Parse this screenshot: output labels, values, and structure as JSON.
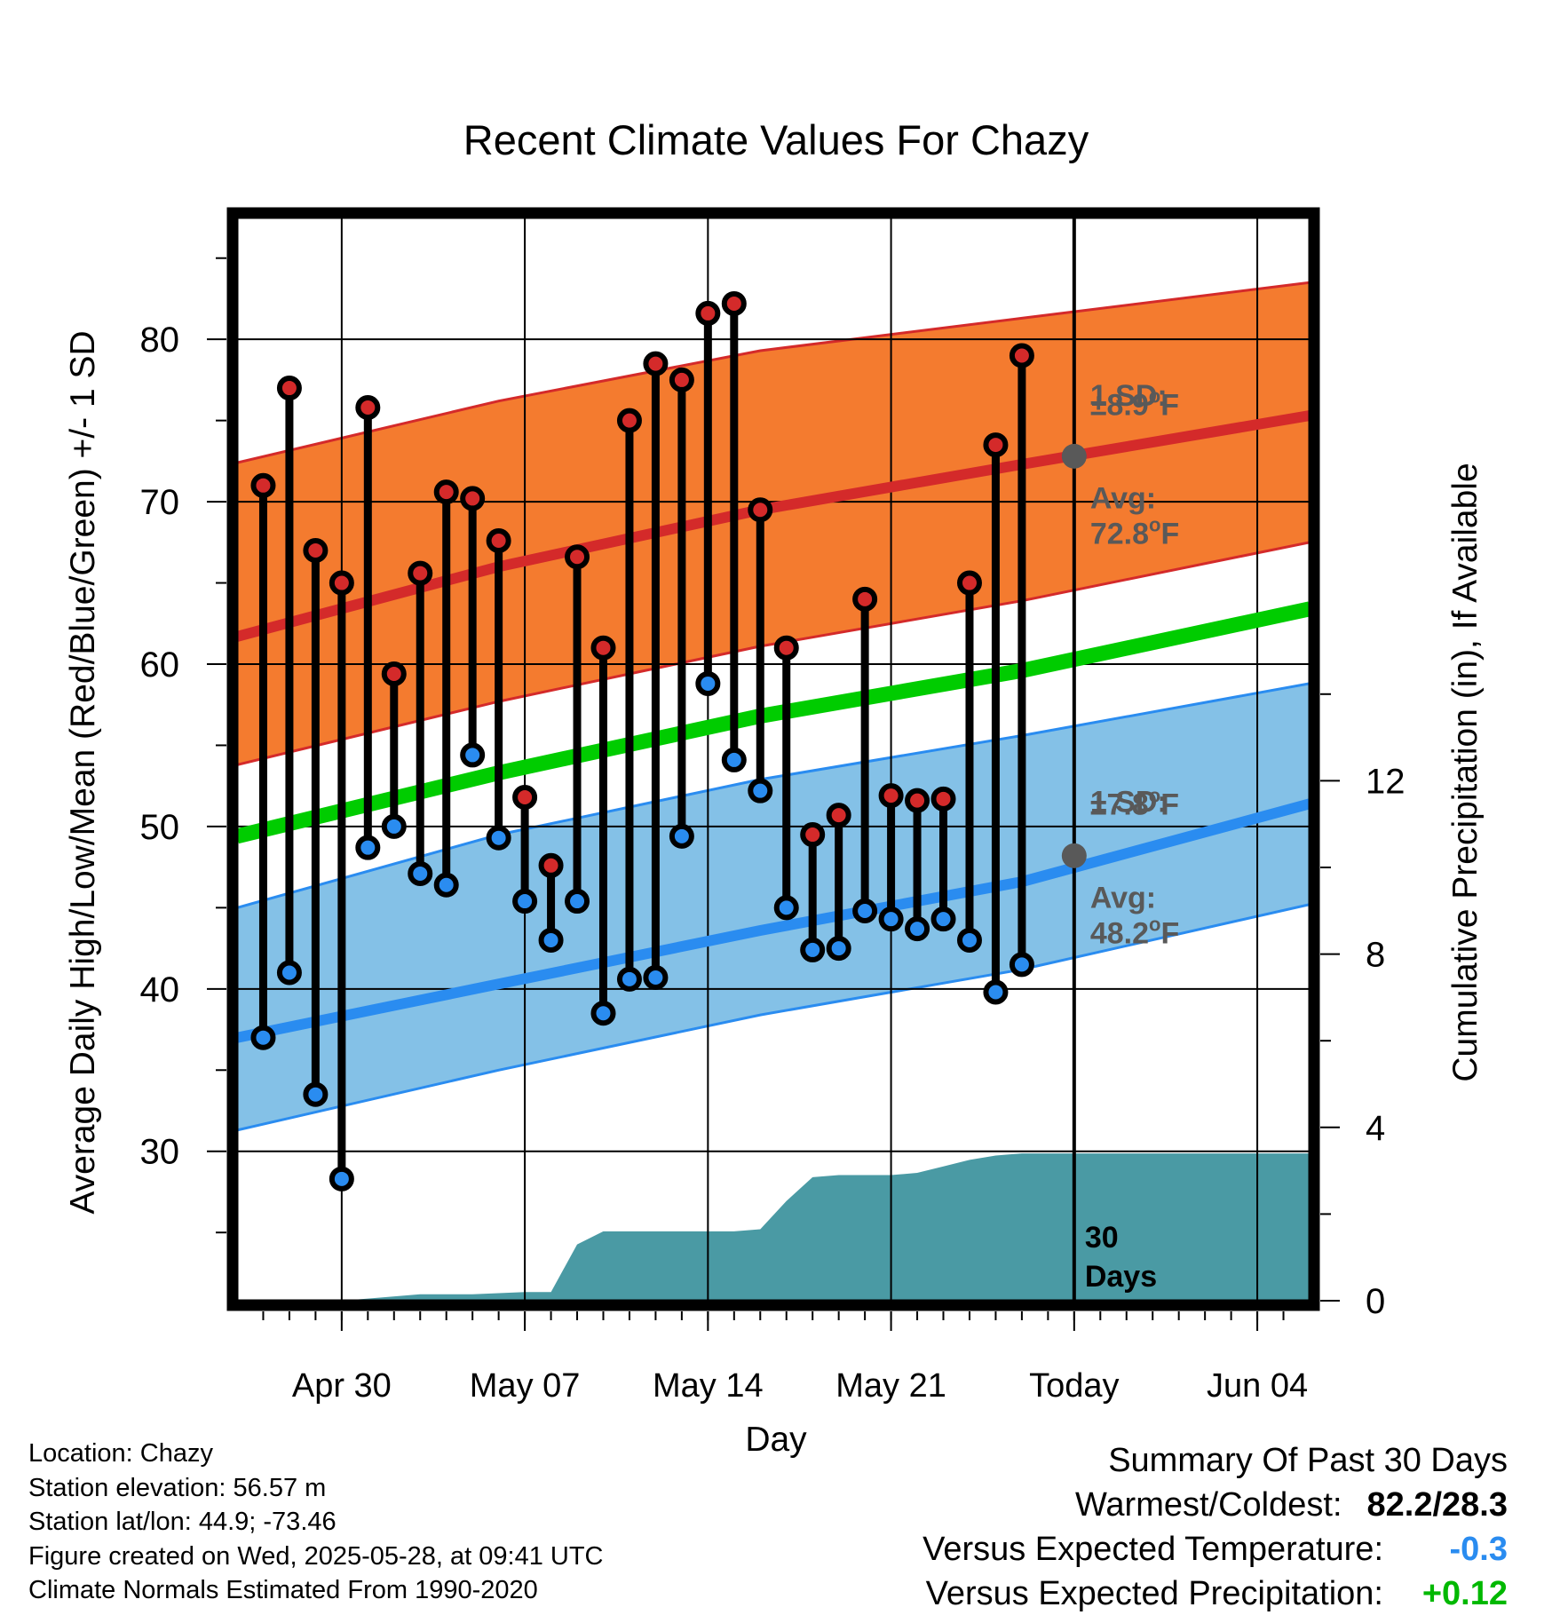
{
  "chart_data": {
    "type": "line",
    "title": "Recent Climate Values For Chazy",
    "xlabel": "Day",
    "ylabel": "Average Daily High/Low/Mean (Red/Blue/Green) +/- 1 SD",
    "y2label": "Cumulative Precipitation (in), If Available",
    "xlim": [
      "2025-04-26",
      "2025-06-06"
    ],
    "ylim": [
      20.8,
      87.5
    ],
    "y2lim": [
      0,
      25
    ],
    "x_ticks": [
      {
        "date": "2025-04-30",
        "label": "Apr 30"
      },
      {
        "date": "2025-05-07",
        "label": "May 07"
      },
      {
        "date": "2025-05-14",
        "label": "May 14"
      },
      {
        "date": "2025-05-21",
        "label": "May 21"
      },
      {
        "date": "2025-05-28",
        "label": "Today"
      },
      {
        "date": "2025-06-04",
        "label": "Jun 04"
      }
    ],
    "y_ticks": [
      30,
      40,
      50,
      60,
      70,
      80
    ],
    "y2_ticks": [
      0,
      4,
      8,
      12
    ],
    "grid": true,
    "today": "2025-05-28",
    "today_label": "30 Days",
    "colors": {
      "high_band": "#f47b2f",
      "high_line": "#d42a2a",
      "low_band": "#84c1e7",
      "low_line": "#2a8cf0",
      "mean_line": "#00cc00",
      "precip": "#4a9aa4",
      "high_marker": "#d42a2a",
      "low_marker": "#2a8cf0",
      "annotation": "#595959",
      "versus_temp": "#2a8cf0",
      "versus_precip": "#00b800"
    },
    "normals": {
      "dates": [
        "2025-04-26",
        "2025-05-06",
        "2025-05-16",
        "2025-05-26",
        "2025-06-06"
      ],
      "high_avg": [
        61.7,
        66.0,
        69.5,
        72.3,
        75.3
      ],
      "high_upper": [
        72.4,
        76.2,
        79.3,
        81.3,
        83.5
      ],
      "high_lower": [
        53.8,
        57.7,
        61.1,
        63.9,
        67.5
      ],
      "low_avg": [
        37.0,
        40.3,
        43.6,
        46.6,
        51.4
      ],
      "low_upper": [
        45.0,
        49.5,
        52.9,
        55.6,
        58.8
      ],
      "low_lower": [
        31.3,
        35.0,
        38.4,
        41.2,
        45.2
      ],
      "mean_avg": [
        49.4,
        53.3,
        56.8,
        59.6,
        63.4
      ]
    },
    "series": [
      {
        "dates": [
          "2025-04-27",
          "2025-04-28",
          "2025-04-29",
          "2025-04-30",
          "2025-05-01",
          "2025-05-02",
          "2025-05-03",
          "2025-05-04",
          "2025-05-05",
          "2025-05-06",
          "2025-05-07",
          "2025-05-08",
          "2025-05-09",
          "2025-05-10",
          "2025-05-11",
          "2025-05-12",
          "2025-05-13",
          "2025-05-14",
          "2025-05-15",
          "2025-05-16",
          "2025-05-17",
          "2025-05-18",
          "2025-05-19",
          "2025-05-20",
          "2025-05-21",
          "2025-05-22",
          "2025-05-23",
          "2025-05-24",
          "2025-05-25",
          "2025-05-26",
          "2025-05-27"
        ],
        "high": [
          71.0,
          77.0,
          67.0,
          65.0,
          75.8,
          59.4,
          65.6,
          70.6,
          70.2,
          67.6,
          51.8,
          47.6,
          66.6,
          61.0,
          75.0,
          78.5,
          77.5,
          81.6,
          82.2,
          69.5,
          61.0,
          49.5,
          50.7,
          64.0,
          51.9,
          51.6,
          51.7,
          65.0,
          73.5,
          79.0,
          null
        ],
        "low": [
          37.0,
          41.0,
          33.5,
          28.3,
          48.7,
          50.0,
          47.1,
          46.4,
          54.4,
          49.3,
          45.4,
          43.0,
          45.4,
          38.5,
          40.6,
          40.7,
          49.4,
          58.8,
          54.1,
          52.2,
          45.0,
          42.4,
          42.5,
          44.8,
          44.3,
          43.7,
          44.3,
          43.0,
          39.8,
          41.5,
          null
        ],
        "high_color": [
          "r",
          "r",
          "r",
          "r",
          "r",
          "r",
          "r",
          "r",
          "r",
          "r",
          "r",
          "r",
          "r",
          "r",
          "r",
          "r",
          "r",
          "r",
          "r",
          "r",
          "r",
          "r",
          "r",
          "r",
          "r",
          "r",
          "r",
          "r",
          "r",
          "r",
          null
        ],
        "low_color": [
          "b",
          "b",
          "b",
          "b",
          "b",
          "b",
          "b",
          "b",
          "b",
          "b",
          "b",
          "b",
          "b",
          "b",
          "b",
          "b",
          "b",
          "b",
          "b",
          "b",
          "b",
          "b",
          "b",
          "b",
          "b",
          "b",
          "b",
          "b",
          "b",
          "b",
          null
        ]
      }
    ],
    "precip": {
      "dates": [
        "2025-04-26",
        "2025-04-28",
        "2025-04-30",
        "2025-05-01",
        "2025-05-03",
        "2025-05-05",
        "2025-05-07",
        "2025-05-08",
        "2025-05-09",
        "2025-05-10",
        "2025-05-13",
        "2025-05-15",
        "2025-05-16",
        "2025-05-17",
        "2025-05-18",
        "2025-05-19",
        "2025-05-20",
        "2025-05-21",
        "2025-05-22",
        "2025-05-23",
        "2025-05-24",
        "2025-05-25",
        "2025-05-26",
        "2025-05-27",
        "2025-06-06"
      ],
      "values": [
        0.0,
        0.0,
        0.0,
        0.05,
        0.15,
        0.15,
        0.2,
        0.2,
        1.3,
        1.6,
        1.6,
        1.6,
        1.65,
        2.3,
        2.85,
        2.9,
        2.9,
        2.9,
        2.95,
        3.1,
        3.25,
        3.35,
        3.4,
        3.4,
        3.4
      ]
    },
    "annotations": {
      "high_sd": "1 SD:",
      "high_sd_value": "±8.9",
      "high_avg": "Avg:",
      "high_avg_value": "72.8",
      "high_avg_point": 72.8,
      "low_sd": "1 SD:",
      "low_sd_value": "±7.8",
      "low_avg": "Avg:",
      "low_avg_point": 48.2,
      "low_avg_value": "48.2",
      "degree_unit": "o",
      "unit_f": "F",
      "days_line1": "30",
      "days_line2": "Days"
    }
  },
  "footer": {
    "location": "Location: Chazy",
    "elevation": "Station elevation: 56.57 m",
    "latlon": "Station lat/lon: 44.9; -73.46",
    "created": "Figure created on Wed, 2025-05-28, at 09:41 UTC",
    "normals": "Climate Normals Estimated From 1990-2020"
  },
  "summary": {
    "title": "Summary Of Past 30 Days",
    "warm_cold_label": "Warmest/Coldest:",
    "warm_cold_value": "82.2/28.3",
    "versus_temp_label": "Versus Expected Temperature:",
    "versus_temp_value": "-0.3",
    "versus_precip_label": "Versus Expected Precipitation:",
    "versus_precip_value": "+0.12"
  }
}
